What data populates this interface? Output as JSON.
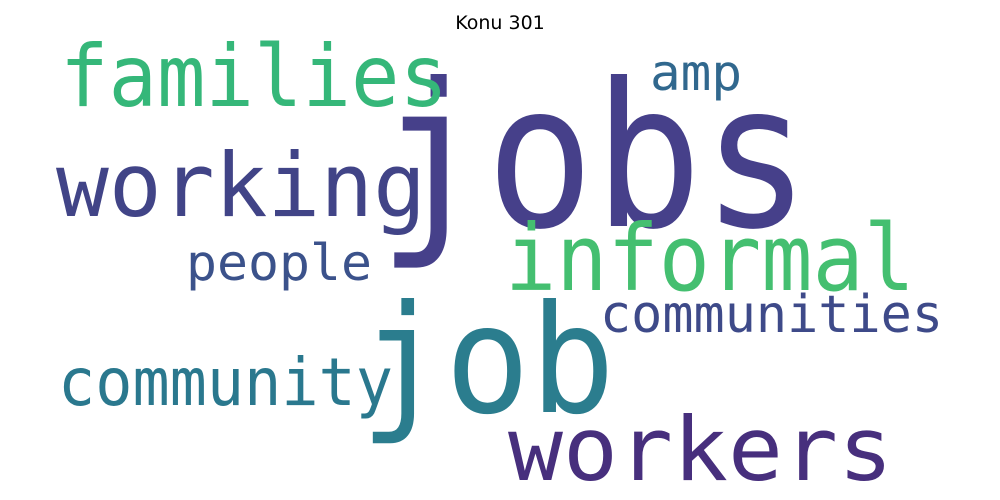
{
  "title": "Konu 301",
  "words": [
    {
      "text": "jobs",
      "color": "#46408a"
    },
    {
      "text": "job",
      "color": "#2b7d8e"
    },
    {
      "text": "informal",
      "color": "#44bf70"
    },
    {
      "text": "workers",
      "color": "#472f7d"
    },
    {
      "text": "working",
      "color": "#414487"
    },
    {
      "text": "families",
      "color": "#35b779"
    },
    {
      "text": "community",
      "color": "#2a788e"
    },
    {
      "text": "communities",
      "color": "#3e4a89"
    },
    {
      "text": "people",
      "color": "#3b528b"
    },
    {
      "text": "amp",
      "color": "#31688e"
    }
  ]
}
